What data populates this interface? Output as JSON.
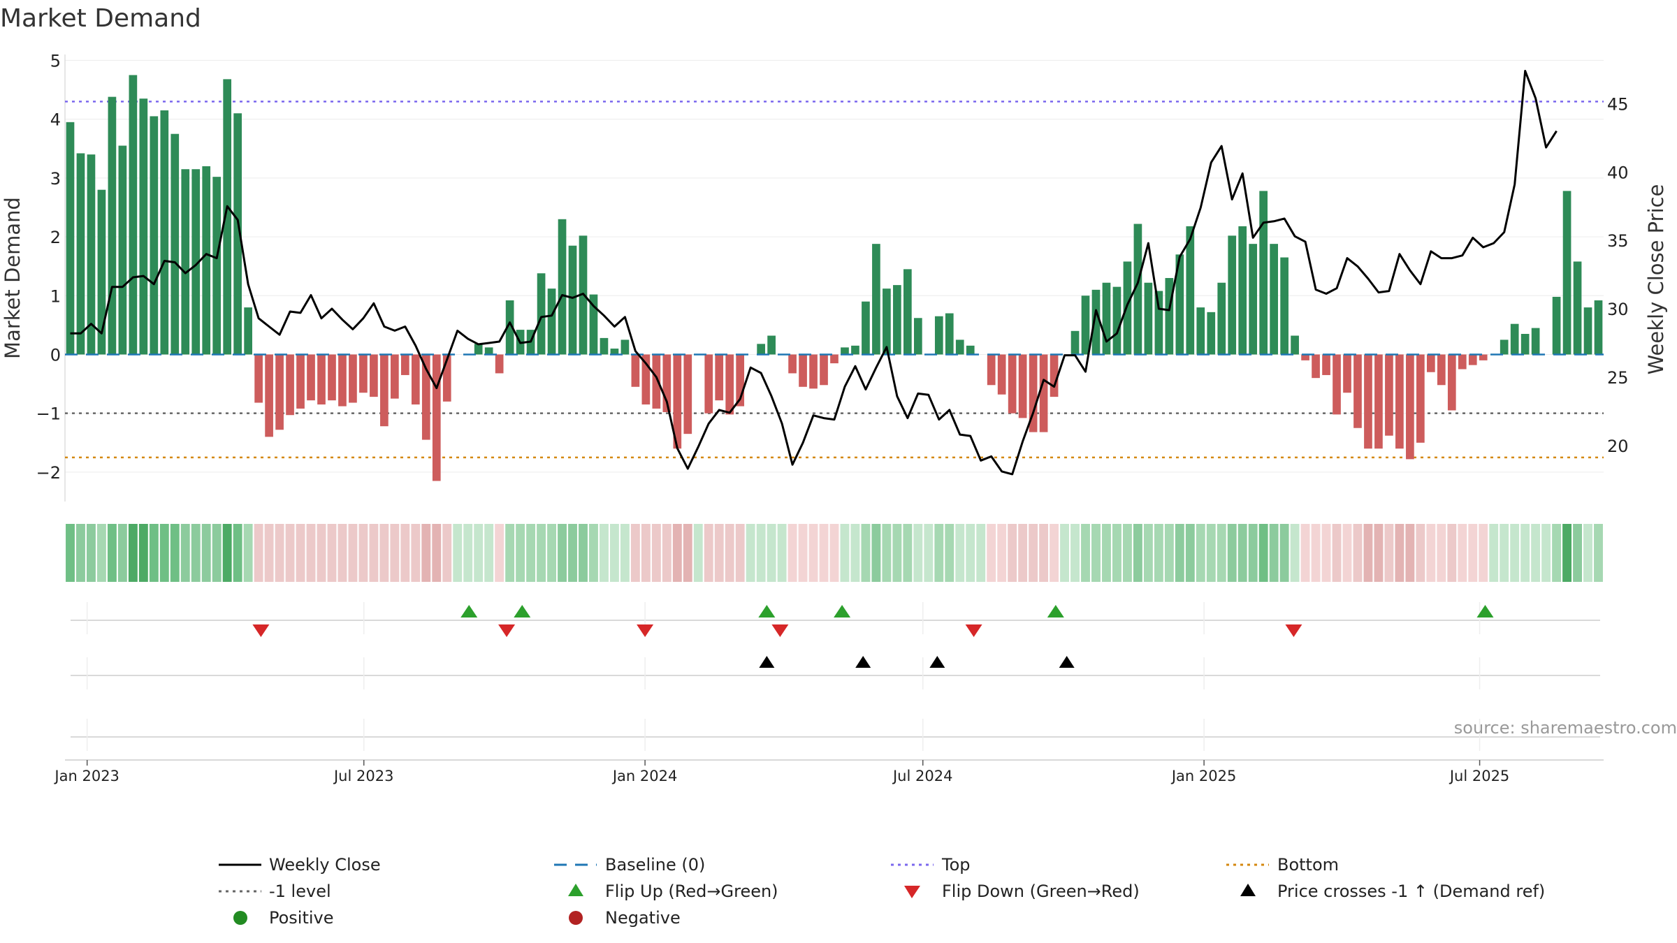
{
  "chart_data": {
    "type": "bar+line",
    "title": "Market Demand",
    "ylabel": "Market Demand",
    "y2label": "Weekly Close Price",
    "source": "source: sharemaestro.com",
    "ylim": [
      -2.5,
      5.1
    ],
    "y2lim": [
      15.9,
      48.6
    ],
    "yticks": [
      -2,
      -1,
      0,
      1,
      2,
      3,
      4,
      5
    ],
    "ytick_labels": [
      "−2",
      "−1",
      "0",
      "1",
      "2",
      "3",
      "4",
      "5"
    ],
    "y2ticks": [
      20,
      25,
      30,
      35,
      40,
      45
    ],
    "ytick2_labels": [
      "20",
      "25",
      "30",
      "35",
      "40",
      "45"
    ],
    "xlim": [
      0,
      139
    ],
    "xticks": [
      {
        "week": 2,
        "label": "Jan 2023"
      },
      {
        "week": 27,
        "label": "Jul 2023"
      },
      {
        "week": 52.4,
        "label": "Jan 2024"
      },
      {
        "week": 77.5,
        "label": "Jul 2024"
      },
      {
        "week": 102.9,
        "label": "Jan 2025"
      },
      {
        "week": 127.8,
        "label": "Jul 2025"
      }
    ],
    "reference_lines": {
      "baseline": 0,
      "top": 4.3,
      "minus_one": -1,
      "bottom": -1.75
    },
    "demand": [
      3.95,
      3.42,
      3.4,
      2.8,
      4.38,
      3.55,
      4.75,
      4.35,
      4.05,
      4.15,
      3.75,
      3.15,
      3.15,
      3.2,
      3.02,
      4.68,
      4.1,
      0.8,
      -0.82,
      -1.4,
      -1.28,
      -1.03,
      -0.92,
      -0.78,
      -0.85,
      -0.78,
      -0.88,
      -0.82,
      -0.65,
      -0.72,
      -1.22,
      -0.75,
      -0.35,
      -0.85,
      -1.45,
      -2.15,
      -0.8,
      0.0,
      0.0,
      0.18,
      0.12,
      -0.32,
      0.92,
      0.42,
      0.42,
      1.38,
      1.12,
      2.3,
      1.85,
      2.02,
      1.02,
      0.28,
      0.1,
      0.25,
      -0.55,
      -0.85,
      -0.92,
      -0.98,
      -1.6,
      -1.35,
      0.0,
      -1.0,
      -0.78,
      -1.02,
      -0.88,
      0.0,
      0.18,
      0.32,
      0.0,
      -0.32,
      -0.55,
      -0.58,
      -0.52,
      -0.15,
      0.12,
      0.15,
      0.9,
      1.88,
      1.12,
      1.18,
      1.45,
      0.62,
      0.0,
      0.65,
      0.7,
      0.25,
      0.15,
      0.0,
      -0.52,
      -0.68,
      -1.0,
      -1.08,
      -1.32,
      -1.32,
      -0.72,
      0.0,
      0.4,
      1.0,
      1.1,
      1.22,
      1.15,
      1.58,
      2.22,
      1.22,
      1.08,
      1.3,
      1.7,
      2.18,
      0.8,
      0.72,
      1.22,
      2.02,
      2.18,
      1.88,
      2.78,
      1.88,
      1.65,
      0.32,
      -0.1,
      -0.4,
      -0.35,
      -1.02,
      -0.65,
      -1.25,
      -1.6,
      -1.6,
      -1.38,
      -1.6,
      -1.78,
      -1.5,
      -0.3,
      -0.52,
      -0.95,
      -0.25,
      -0.18,
      -0.1,
      0.0,
      0.25,
      0.52,
      0.35,
      0.45,
      0.0,
      0.98,
      2.78,
      1.58,
      0.8,
      0.92
    ],
    "weekly_close": [
      28.2,
      28.2,
      28.9,
      28.2,
      31.6,
      31.6,
      32.3,
      32.4,
      31.8,
      33.5,
      33.4,
      32.6,
      33.2,
      34.0,
      33.7,
      37.5,
      36.5,
      31.8,
      29.3,
      28.7,
      28.1,
      29.8,
      29.7,
      31.0,
      29.3,
      30.0,
      29.2,
      28.5,
      29.3,
      30.4,
      28.7,
      28.4,
      28.7,
      27.3,
      25.6,
      24.2,
      26.3,
      28.4,
      27.8,
      27.4,
      27.5,
      27.6,
      29.0,
      27.5,
      27.6,
      29.4,
      29.5,
      31.0,
      30.8,
      31.1,
      30.2,
      29.5,
      28.7,
      29.4,
      26.9,
      26.0,
      25.0,
      23.2,
      19.8,
      18.3,
      19.9,
      21.6,
      22.6,
      22.4,
      23.4,
      25.7,
      25.3,
      23.6,
      21.6,
      18.6,
      20.2,
      22.2,
      22.0,
      21.9,
      24.3,
      25.8,
      24.1,
      25.7,
      27.2,
      23.6,
      22.0,
      23.8,
      23.7,
      21.9,
      22.6,
      20.8,
      20.7,
      18.9,
      19.2,
      18.1,
      17.9,
      20.3,
      22.4,
      24.8,
      24.3,
      26.6,
      26.6,
      25.4,
      29.9,
      27.6,
      28.2,
      30.3,
      31.9,
      34.8,
      30.0,
      29.9,
      33.8,
      35.1,
      37.4,
      40.7,
      41.9,
      38.0,
      39.9,
      35.2,
      36.3,
      36.4,
      36.6,
      35.3,
      34.9,
      31.4,
      31.1,
      31.5,
      33.7,
      33.1,
      32.2,
      31.2,
      31.3,
      34.0,
      32.8,
      31.8,
      34.2,
      33.7,
      33.7,
      33.9,
      35.2,
      34.5,
      34.8,
      35.6,
      39.1,
      47.4,
      45.4,
      41.8,
      43.0
    ],
    "strip_levels": [
      3,
      2,
      2,
      1,
      3,
      2,
      4,
      4,
      3,
      3,
      3,
      2,
      2,
      2,
      2,
      4,
      3,
      1,
      1,
      1,
      1,
      1,
      1,
      1,
      1,
      1,
      1,
      1,
      1,
      1,
      1,
      1,
      1,
      1,
      2,
      3,
      1,
      0,
      0,
      0,
      0,
      0,
      1,
      1,
      1,
      1,
      1,
      2,
      2,
      2,
      1,
      0,
      0,
      0,
      1,
      1,
      1,
      1,
      2,
      2,
      0,
      1,
      1,
      1,
      1,
      0,
      0,
      0,
      0,
      0,
      0,
      0,
      0,
      0,
      0,
      0,
      1,
      2,
      1,
      1,
      1,
      0,
      0,
      1,
      1,
      0,
      0,
      0,
      0,
      0,
      1,
      1,
      1,
      1,
      0,
      0,
      0,
      1,
      1,
      1,
      1,
      1,
      2,
      1,
      1,
      1,
      2,
      2,
      1,
      1,
      1,
      2,
      2,
      2,
      3,
      2,
      2,
      0,
      0,
      0,
      0,
      1,
      0,
      1,
      2,
      2,
      1,
      2,
      2,
      1,
      0,
      0,
      1,
      0,
      0,
      0,
      0,
      0,
      0,
      0,
      0,
      0,
      1,
      4,
      2,
      0,
      1
    ],
    "flip_up_weeks": [
      36.5,
      41.3,
      63.4,
      70.2,
      89.5,
      128.3
    ],
    "flip_down_weeks": [
      17.7,
      39.9,
      52.4,
      64.6,
      82.1,
      111.0
    ],
    "price_cross_weeks": [
      63.4,
      72.1,
      78.8,
      90.5
    ],
    "colors": {
      "positive_bar": "#2e8b57",
      "negative_bar": "#cd5c5c",
      "price_line": "#000000",
      "baseline": "#1f77b4",
      "top": "#7b68ee",
      "minus_one": "#666666",
      "bottom": "#d4880f",
      "flip_up": "#2ca02c",
      "flip_down": "#d62728",
      "price_cross": "#000000",
      "positive_dot": "#228b22",
      "negative_dot": "#b22222",
      "strip_pos": [
        "#c5e6cd",
        "#a6d8b2",
        "#8ccb9d",
        "#6fbf85",
        "#4daa65"
      ],
      "strip_neg": [
        "#f3d4d4",
        "#ecc9c9",
        "#e3b3b3"
      ]
    },
    "legend": {
      "weekly_close": "Weekly Close",
      "baseline": "Baseline (0)",
      "top": "Top",
      "bottom": "Bottom",
      "minus_one": "-1 level",
      "flip_up": "Flip Up (Red→Green)",
      "flip_down": "Flip Down (Green→Red)",
      "price_cross": "Price crosses -1 ↑ (Demand ref)",
      "positive": "Positive",
      "negative": "Negative"
    }
  }
}
